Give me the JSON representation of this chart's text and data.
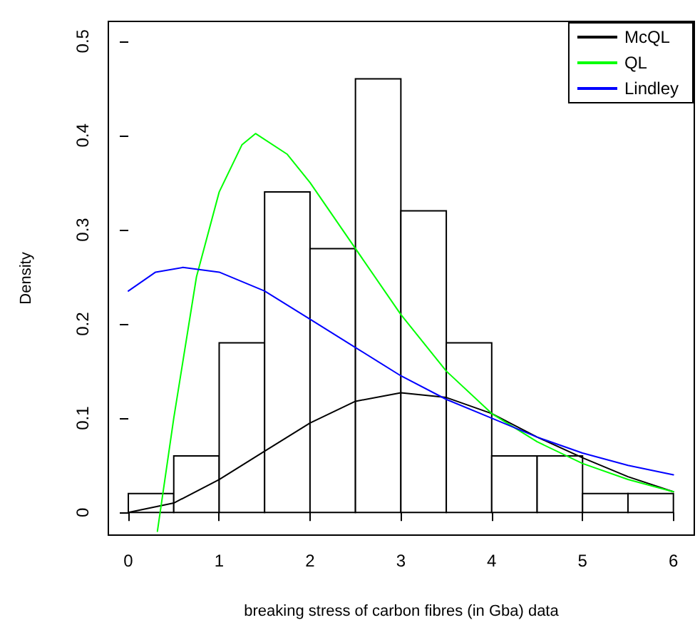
{
  "chart_data": {
    "type": "histogram",
    "xlabel": "breaking stress of carbon fibres (in Gba) data",
    "ylabel": "Density",
    "bins": [
      0,
      0.5,
      1,
      1.5,
      2,
      2.5,
      3,
      3.5,
      4,
      4.5,
      5,
      5.5,
      6
    ],
    "values": [
      0.02,
      0.06,
      0.18,
      0.34,
      0.28,
      0.46,
      0.32,
      0.18,
      0.06,
      0.06,
      0.02,
      0.02
    ],
    "color": "#ffffff",
    "series": [
      {
        "name": "McQL",
        "type": "line",
        "color": "#000000",
        "x": [
          0,
          0.5,
          1,
          1.5,
          2,
          2.5,
          3,
          3.5,
          4,
          4.5,
          5,
          5.5,
          6
        ],
        "values": [
          0,
          0.01,
          0.035,
          0.065,
          0.095,
          0.118,
          0.127,
          0.122,
          0.105,
          0.08,
          0.058,
          0.038,
          0.022
        ]
      },
      {
        "name": "QL",
        "type": "line",
        "color": "#00ff00",
        "x": [
          0.32,
          0.5,
          0.75,
          1,
          1.25,
          1.4,
          1.75,
          2,
          2.5,
          3,
          3.5,
          4,
          4.5,
          5,
          5.5,
          6
        ],
        "values": [
          -0.02,
          0.1,
          0.25,
          0.34,
          0.39,
          0.402,
          0.38,
          0.35,
          0.28,
          0.21,
          0.15,
          0.105,
          0.075,
          0.052,
          0.035,
          0.022
        ]
      },
      {
        "name": "Lindley",
        "type": "line",
        "color": "#0000ff",
        "x": [
          0,
          0.3,
          0.6,
          1,
          1.5,
          2,
          2.5,
          3,
          3.5,
          4,
          4.5,
          5,
          5.5,
          6
        ],
        "values": [
          0.235,
          0.255,
          0.26,
          0.255,
          0.235,
          0.205,
          0.175,
          0.145,
          0.12,
          0.1,
          0.08,
          0.063,
          0.05,
          0.04
        ]
      }
    ],
    "xlim": [
      -0.22,
      6.23
    ],
    "xticks": [
      0,
      1,
      2,
      3,
      4,
      5,
      6
    ],
    "ylim": [
      -0.024,
      0.521
    ],
    "yticks": [
      0,
      0.1,
      0.2,
      0.3,
      0.4,
      0.5
    ],
    "legend": "top right",
    "grid": false,
    "marker": "none",
    "line_style": "solid"
  }
}
